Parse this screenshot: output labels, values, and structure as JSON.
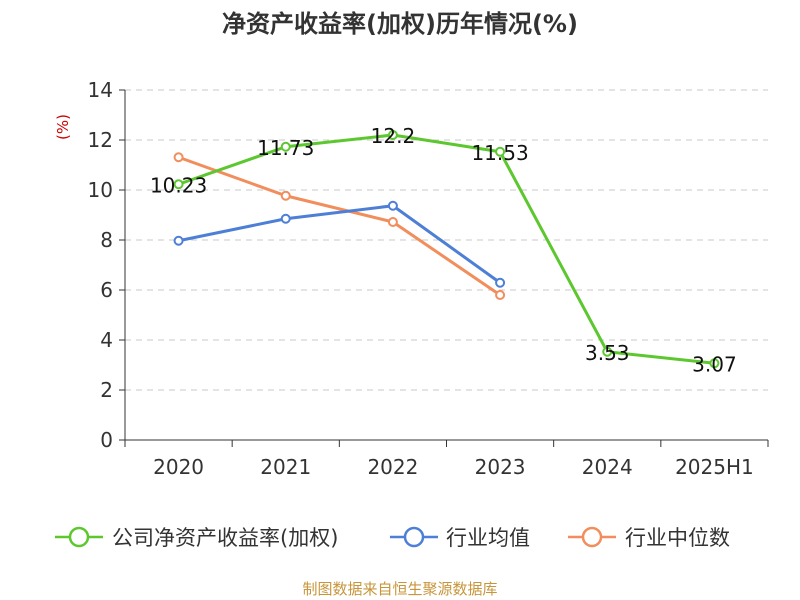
{
  "chart_data": {
    "type": "line",
    "title": "净资产收益率(加权)历年情况(%)",
    "ylabel": "(%)",
    "xlabel": "",
    "categories": [
      "2020",
      "2021",
      "2022",
      "2023",
      "2024",
      "2025H1"
    ],
    "ylim": [
      0,
      14
    ],
    "yticks": [
      0,
      2,
      4,
      6,
      8,
      10,
      12,
      14
    ],
    "grid": true,
    "legend_position": "bottom",
    "series": [
      {
        "name": "公司净资产收益率(加权)",
        "color": "#5cc72e",
        "values": [
          10.23,
          11.73,
          12.2,
          11.53,
          3.53,
          3.07
        ],
        "labels": [
          "10.23",
          "11.73",
          "12.2",
          "11.53",
          "3.53",
          "3.07"
        ]
      },
      {
        "name": "行业均值",
        "color": "#4e7fd6",
        "values": [
          7.97,
          8.85,
          9.37,
          6.29,
          null,
          null
        ],
        "labels": []
      },
      {
        "name": "行业中位数",
        "color": "#f28d5c",
        "values": [
          11.31,
          9.77,
          8.72,
          5.8,
          null,
          null
        ],
        "labels": []
      }
    ]
  },
  "source": "制图数据来自恒生聚源数据库"
}
